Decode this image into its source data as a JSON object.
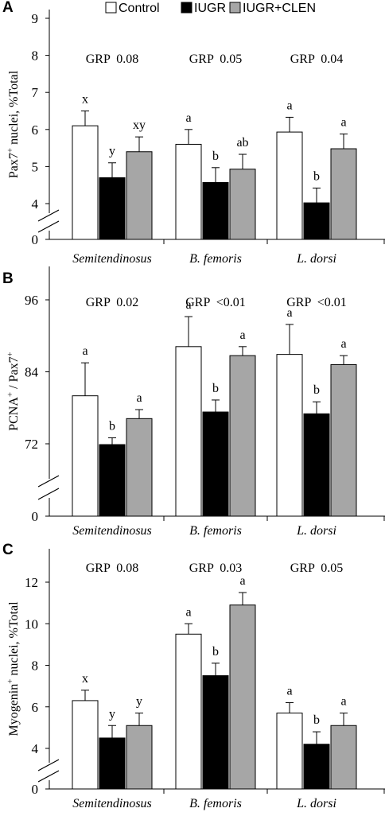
{
  "legend": [
    {
      "name": "Control",
      "color": "#ffffff"
    },
    {
      "name": "IUGR",
      "color": "#000000"
    },
    {
      "name": "IUGR+CLEN",
      "color": "#a6a6a6"
    }
  ],
  "chart_data": [
    {
      "type": "bar",
      "panel": "A",
      "ylabel": {
        "parts": [
          {
            "text": "Pax7"
          },
          {
            "text": "+",
            "sup": true
          },
          {
            "text": " nuclei, %Total"
          }
        ]
      },
      "categories": [
        "Semitendinosus",
        "B. femoris",
        "L. dorsi"
      ],
      "yticks": [
        0,
        4,
        5,
        6,
        7,
        8,
        9
      ],
      "axis_break": true,
      "series": [
        {
          "name": "Control",
          "color": "#ffffff",
          "values": [
            6.1,
            5.6,
            5.93
          ],
          "errors": [
            0.4,
            0.4,
            0.4
          ]
        },
        {
          "name": "IUGR",
          "color": "#000000",
          "values": [
            4.7,
            4.57,
            4.02
          ],
          "errors": [
            0.4,
            0.4,
            0.4
          ]
        },
        {
          "name": "IUGR+CLEN",
          "color": "#a6a6a6",
          "values": [
            5.4,
            4.93,
            5.48
          ],
          "errors": [
            0.4,
            0.4,
            0.4
          ]
        }
      ],
      "sig_letters": [
        [
          "x",
          "y",
          "xy"
        ],
        [
          "a",
          "b",
          "ab"
        ],
        [
          "a",
          "b",
          "a"
        ]
      ],
      "grp": [
        "GRP  0.08",
        "GRP  0.05",
        "GRP  0.04"
      ]
    },
    {
      "type": "bar",
      "panel": "B",
      "ylabel": {
        "parts": [
          {
            "text": "PCNA"
          },
          {
            "text": "+",
            "sup": true
          },
          {
            "text": " / Pax7"
          },
          {
            "text": "+",
            "sup": true
          }
        ]
      },
      "categories": [
        "Semitendinosus",
        "B. femoris",
        "L. dorsi"
      ],
      "yticks": [
        0,
        72,
        84,
        96
      ],
      "axis_break": true,
      "series": [
        {
          "name": "Control",
          "color": "#ffffff",
          "values": [
            80.0,
            88.2,
            86.9
          ],
          "errors": [
            5.5,
            5.0,
            5.0
          ]
        },
        {
          "name": "IUGR",
          "color": "#000000",
          "values": [
            71.2,
            77.3,
            77.0
          ],
          "errors": [
            1.8,
            2.0,
            2.0
          ]
        },
        {
          "name": "IUGR+CLEN",
          "color": "#a6a6a6",
          "values": [
            76.2,
            86.7,
            85.2
          ],
          "errors": [
            1.5,
            1.5,
            1.5
          ]
        }
      ],
      "sig_letters": [
        [
          "a",
          "b",
          "a"
        ],
        [
          "a",
          "b",
          "a"
        ],
        [
          "a",
          "b",
          "a"
        ]
      ],
      "grp": [
        "GRP  0.02",
        "GRP  <0.01",
        "GRP  <0.01"
      ]
    },
    {
      "type": "bar",
      "panel": "C",
      "ylabel": {
        "parts": [
          {
            "text": "Myogenin"
          },
          {
            "text": "+",
            "sup": true
          },
          {
            "text": " nuclei, %Total"
          }
        ]
      },
      "categories": [
        "Semitendinosus",
        "B. femoris",
        "L. dorsi"
      ],
      "yticks": [
        0,
        4,
        6,
        8,
        10,
        12
      ],
      "axis_break": true,
      "series": [
        {
          "name": "Control",
          "color": "#ffffff",
          "values": [
            6.3,
            9.5,
            5.7
          ],
          "errors": [
            0.5,
            0.5,
            0.5
          ]
        },
        {
          "name": "IUGR",
          "color": "#000000",
          "values": [
            4.5,
            7.5,
            4.2
          ],
          "errors": [
            0.6,
            0.6,
            0.6
          ]
        },
        {
          "name": "IUGR+CLEN",
          "color": "#a6a6a6",
          "values": [
            5.1,
            10.9,
            5.1
          ],
          "errors": [
            0.6,
            0.6,
            0.6
          ]
        }
      ],
      "sig_letters": [
        [
          "x",
          "y",
          "y"
        ],
        [
          "a",
          "b",
          "a"
        ],
        [
          "a",
          "b",
          "a"
        ]
      ],
      "grp": [
        "GRP  0.08",
        "GRP  0.03",
        "GRP  0.05"
      ]
    }
  ]
}
